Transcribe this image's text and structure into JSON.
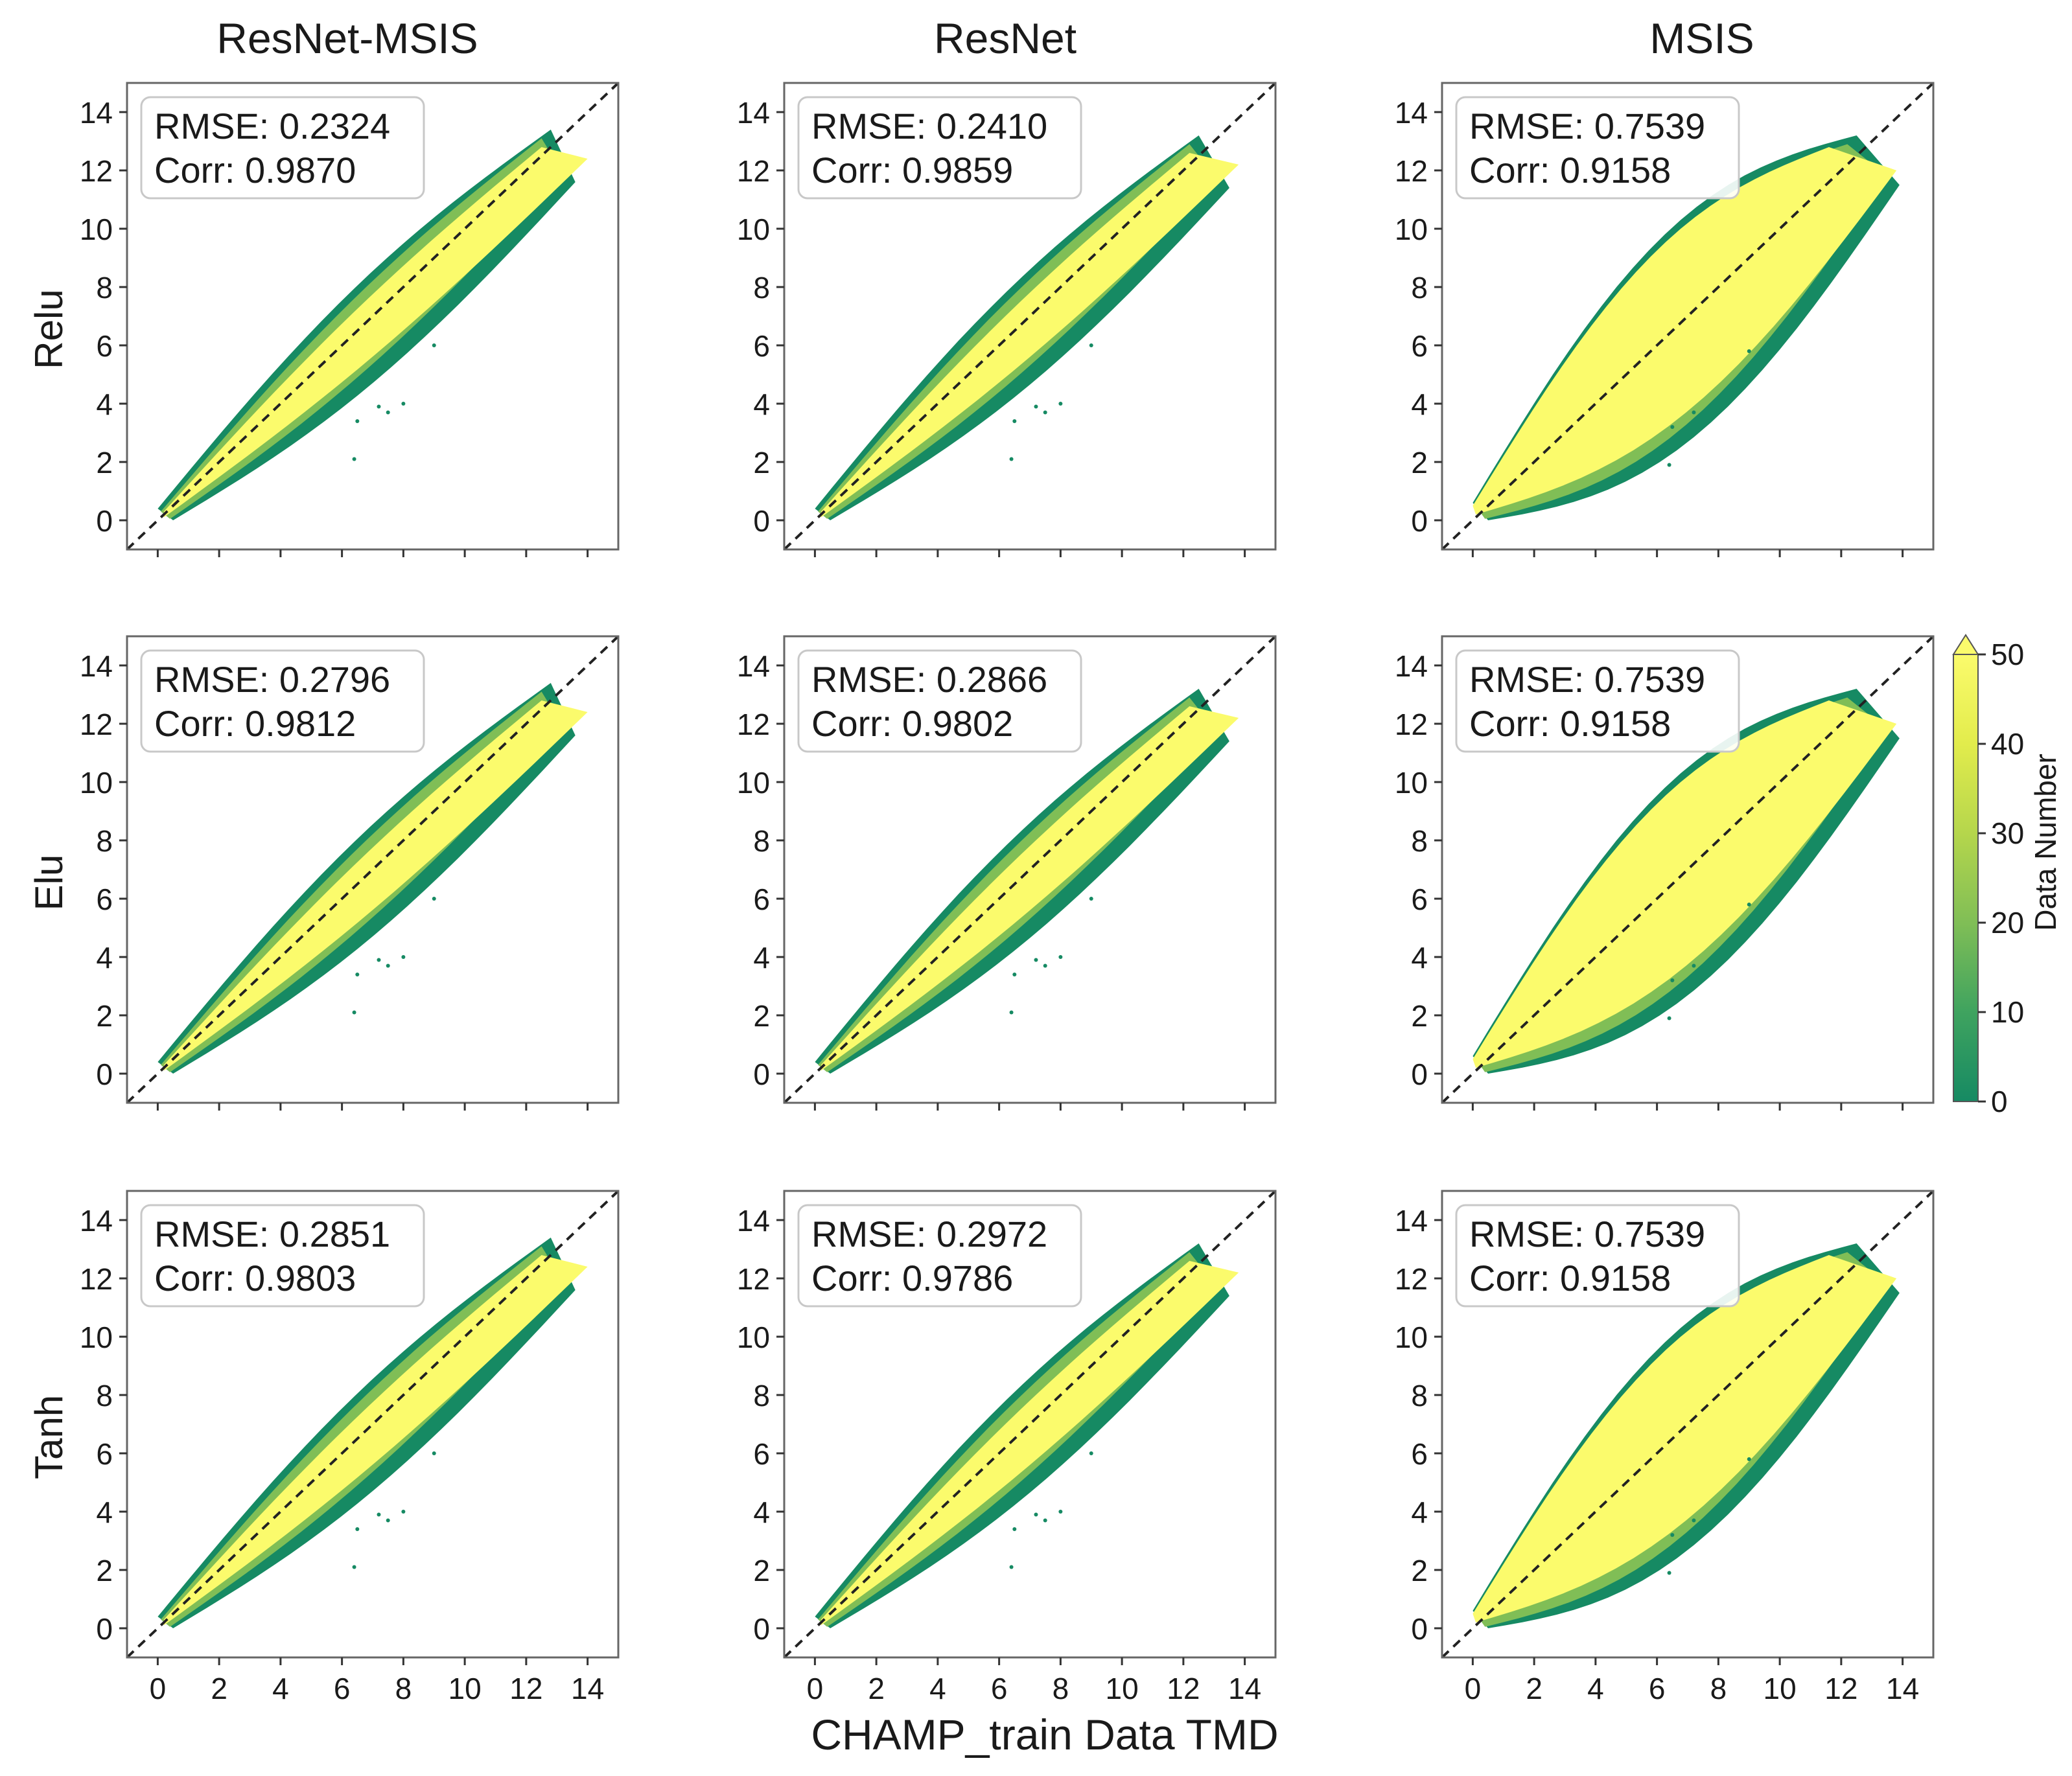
{
  "chart_data": {
    "type": "scatter",
    "subtype": "density-scatter-grid",
    "column_titles": [
      "ResNet-MSIS",
      "ResNet",
      "MSIS"
    ],
    "row_labels": [
      "Relu",
      "Elu",
      "Tanh"
    ],
    "xlabel": "CHAMP_train Data TMD",
    "ylabel": "",
    "xlim": [
      -1,
      15
    ],
    "ylim": [
      -1,
      15
    ],
    "xticks": [
      0,
      2,
      4,
      6,
      8,
      10,
      12,
      14
    ],
    "yticks": [
      0,
      2,
      4,
      6,
      8,
      10,
      12,
      14
    ],
    "reference_line": {
      "style": "dashed",
      "equation": "y = x",
      "color": "#222222"
    },
    "colorbar": {
      "label": "Data Number",
      "min": 0,
      "max": 50,
      "extend": "max",
      "ticks": [
        0,
        10,
        20,
        30,
        40,
        50
      ],
      "colors": [
        "#168a63",
        "#3fa35f",
        "#80be56",
        "#b5d64c",
        "#e2ec4c",
        "#fbfb6c"
      ]
    },
    "panels": [
      {
        "row": "Relu",
        "column": "ResNet-MSIS",
        "rmse_label": "RMSE: 0.2324",
        "corr_label": "Corr: 0.9870",
        "rmse": 0.2324,
        "corr": 0.987
      },
      {
        "row": "Relu",
        "column": "ResNet",
        "rmse_label": "RMSE: 0.2410",
        "corr_label": "Corr: 0.9859",
        "rmse": 0.241,
        "corr": 0.9859
      },
      {
        "row": "Relu",
        "column": "MSIS",
        "rmse_label": "RMSE: 0.7539",
        "corr_label": "Corr: 0.9158",
        "rmse": 0.7539,
        "corr": 0.9158
      },
      {
        "row": "Elu",
        "column": "ResNet-MSIS",
        "rmse_label": "RMSE: 0.2796",
        "corr_label": "Corr: 0.9812",
        "rmse": 0.2796,
        "corr": 0.9812
      },
      {
        "row": "Elu",
        "column": "ResNet",
        "rmse_label": "RMSE: 0.2866",
        "corr_label": "Corr: 0.9802",
        "rmse": 0.2866,
        "corr": 0.9802
      },
      {
        "row": "Elu",
        "column": "MSIS",
        "rmse_label": "RMSE: 0.7539",
        "corr_label": "Corr: 0.9158",
        "rmse": 0.7539,
        "corr": 0.9158
      },
      {
        "row": "Tanh",
        "column": "ResNet-MSIS",
        "rmse_label": "RMSE: 0.2851",
        "corr_label": "Corr: 0.9803",
        "rmse": 0.2851,
        "corr": 0.9803
      },
      {
        "row": "Tanh",
        "column": "ResNet",
        "rmse_label": "RMSE: 0.2972",
        "corr_label": "Corr: 0.9786",
        "rmse": 0.2972,
        "corr": 0.9786
      },
      {
        "row": "Tanh",
        "column": "MSIS",
        "rmse_label": "RMSE: 0.7539",
        "corr_label": "Corr: 0.9158",
        "rmse": 0.7539,
        "corr": 0.9158
      }
    ],
    "density_bands": {
      "ResNet-MSIS": {
        "core_lower": [
          [
            0.2,
            0.1
          ],
          [
            14,
            12.4
          ]
        ],
        "core_upper": [
          [
            0.2,
            0.3
          ],
          [
            12.5,
            12.8
          ]
        ],
        "outer_lower": [
          [
            0.5,
            0.0
          ],
          [
            13.6,
            11.6
          ]
        ],
        "outer_upper": [
          [
            0,
            0.4
          ],
          [
            12.8,
            13.4
          ]
        ]
      },
      "ResNet": {
        "core_lower": [
          [
            0.2,
            0.1
          ],
          [
            13.8,
            12.2
          ]
        ],
        "core_upper": [
          [
            0.2,
            0.3
          ],
          [
            12.2,
            12.6
          ]
        ],
        "outer_lower": [
          [
            0.5,
            0.0
          ],
          [
            13.5,
            11.4
          ]
        ],
        "outer_upper": [
          [
            0,
            0.4
          ],
          [
            12.5,
            13.2
          ]
        ]
      },
      "MSIS": {
        "core_lower": [
          [
            0.1,
            0.2
          ],
          [
            13.8,
            12.0
          ]
        ],
        "core_upper": [
          [
            0,
            0.5
          ],
          [
            11.6,
            12.8
          ]
        ],
        "outer_lower": [
          [
            0.5,
            0.0
          ],
          [
            13.9,
            11.5
          ]
        ],
        "outer_upper": [
          [
            0,
            0.6
          ],
          [
            12.5,
            13.2
          ]
        ]
      }
    }
  }
}
